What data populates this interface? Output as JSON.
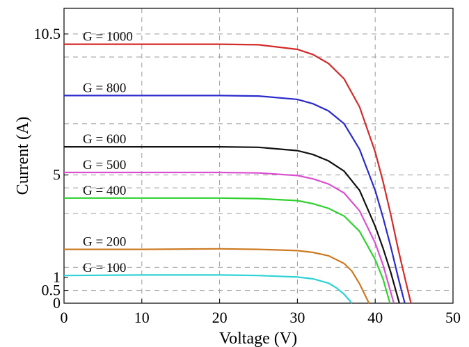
{
  "chart_data": {
    "type": "line",
    "title": "",
    "xlabel": "Voltage (V)",
    "ylabel": "Current (A)",
    "xlim": [
      0,
      50
    ],
    "ylim": [
      0,
      11.5
    ],
    "grid": true,
    "x_ticks": [
      {
        "value": 0,
        "label": "0"
      },
      {
        "value": 10,
        "label": "10"
      },
      {
        "value": 20,
        "label": "20"
      },
      {
        "value": 30,
        "label": "30"
      },
      {
        "value": 40,
        "label": "40"
      },
      {
        "value": 50,
        "label": "50"
      }
    ],
    "y_ticks": [
      {
        "value": 0,
        "label": "0"
      },
      {
        "value": 0.5,
        "label": "0.5"
      },
      {
        "value": 1,
        "label": "1"
      },
      {
        "value": 5,
        "label": "5"
      },
      {
        "value": 10.5,
        "label": "10.5"
      }
    ],
    "reference_lines_y": [
      10.5,
      9.6,
      7.0,
      5.0,
      4.5,
      3.5,
      1.4,
      0.5
    ],
    "series": [
      {
        "name": "G = 1000",
        "color": "#d42a2a",
        "x": [
          0,
          10,
          20,
          25,
          30,
          32,
          34,
          36,
          38,
          40,
          41,
          42,
          43,
          44,
          44.6
        ],
        "y": [
          10.1,
          10.1,
          10.1,
          10.08,
          9.9,
          9.7,
          9.35,
          8.75,
          7.65,
          5.9,
          4.75,
          3.45,
          2.05,
          0.75,
          0
        ]
      },
      {
        "name": "G = 800",
        "color": "#2a2acc",
        "x": [
          0,
          10,
          20,
          25,
          30,
          32,
          34,
          36,
          38,
          40,
          41,
          42,
          43,
          43.8
        ],
        "y": [
          8.1,
          8.1,
          8.1,
          8.08,
          7.95,
          7.78,
          7.5,
          7.0,
          6.0,
          4.4,
          3.35,
          2.2,
          0.95,
          0
        ]
      },
      {
        "name": "G = 600",
        "color": "#111111",
        "x": [
          0,
          10,
          20,
          25,
          30,
          32,
          34,
          36,
          38,
          40,
          41,
          42,
          43.1
        ],
        "y": [
          6.1,
          6.1,
          6.1,
          6.08,
          5.95,
          5.8,
          5.55,
          5.15,
          4.4,
          3.0,
          2.15,
          1.2,
          0
        ]
      },
      {
        "name": "G = 500",
        "color": "#d94fd0",
        "x": [
          0,
          10,
          20,
          25,
          30,
          32,
          34,
          36,
          38,
          40,
          41,
          42.4
        ],
        "y": [
          5.1,
          5.1,
          5.1,
          5.08,
          4.98,
          4.85,
          4.65,
          4.3,
          3.6,
          2.35,
          1.5,
          0
        ]
      },
      {
        "name": "G = 400",
        "color": "#2ed12e",
        "x": [
          0,
          10,
          20,
          25,
          30,
          32,
          34,
          36,
          38,
          40,
          41,
          41.9
        ],
        "y": [
          4.1,
          4.1,
          4.1,
          4.08,
          4.0,
          3.88,
          3.7,
          3.4,
          2.8,
          1.7,
          0.95,
          0
        ]
      },
      {
        "name": "G = 200",
        "color": "#cc7a22",
        "x": [
          0,
          10,
          20,
          25,
          30,
          32,
          34,
          36,
          37,
          38,
          39.2
        ],
        "y": [
          2.1,
          2.1,
          2.12,
          2.1,
          2.05,
          1.98,
          1.85,
          1.55,
          1.25,
          0.75,
          0
        ]
      },
      {
        "name": "G = 100",
        "color": "#2ed2d6",
        "x": [
          0,
          10,
          20,
          25,
          30,
          32,
          34,
          35,
          36,
          37
        ],
        "y": [
          1.08,
          1.1,
          1.1,
          1.08,
          1.02,
          0.95,
          0.78,
          0.6,
          0.35,
          0
        ]
      }
    ]
  }
}
